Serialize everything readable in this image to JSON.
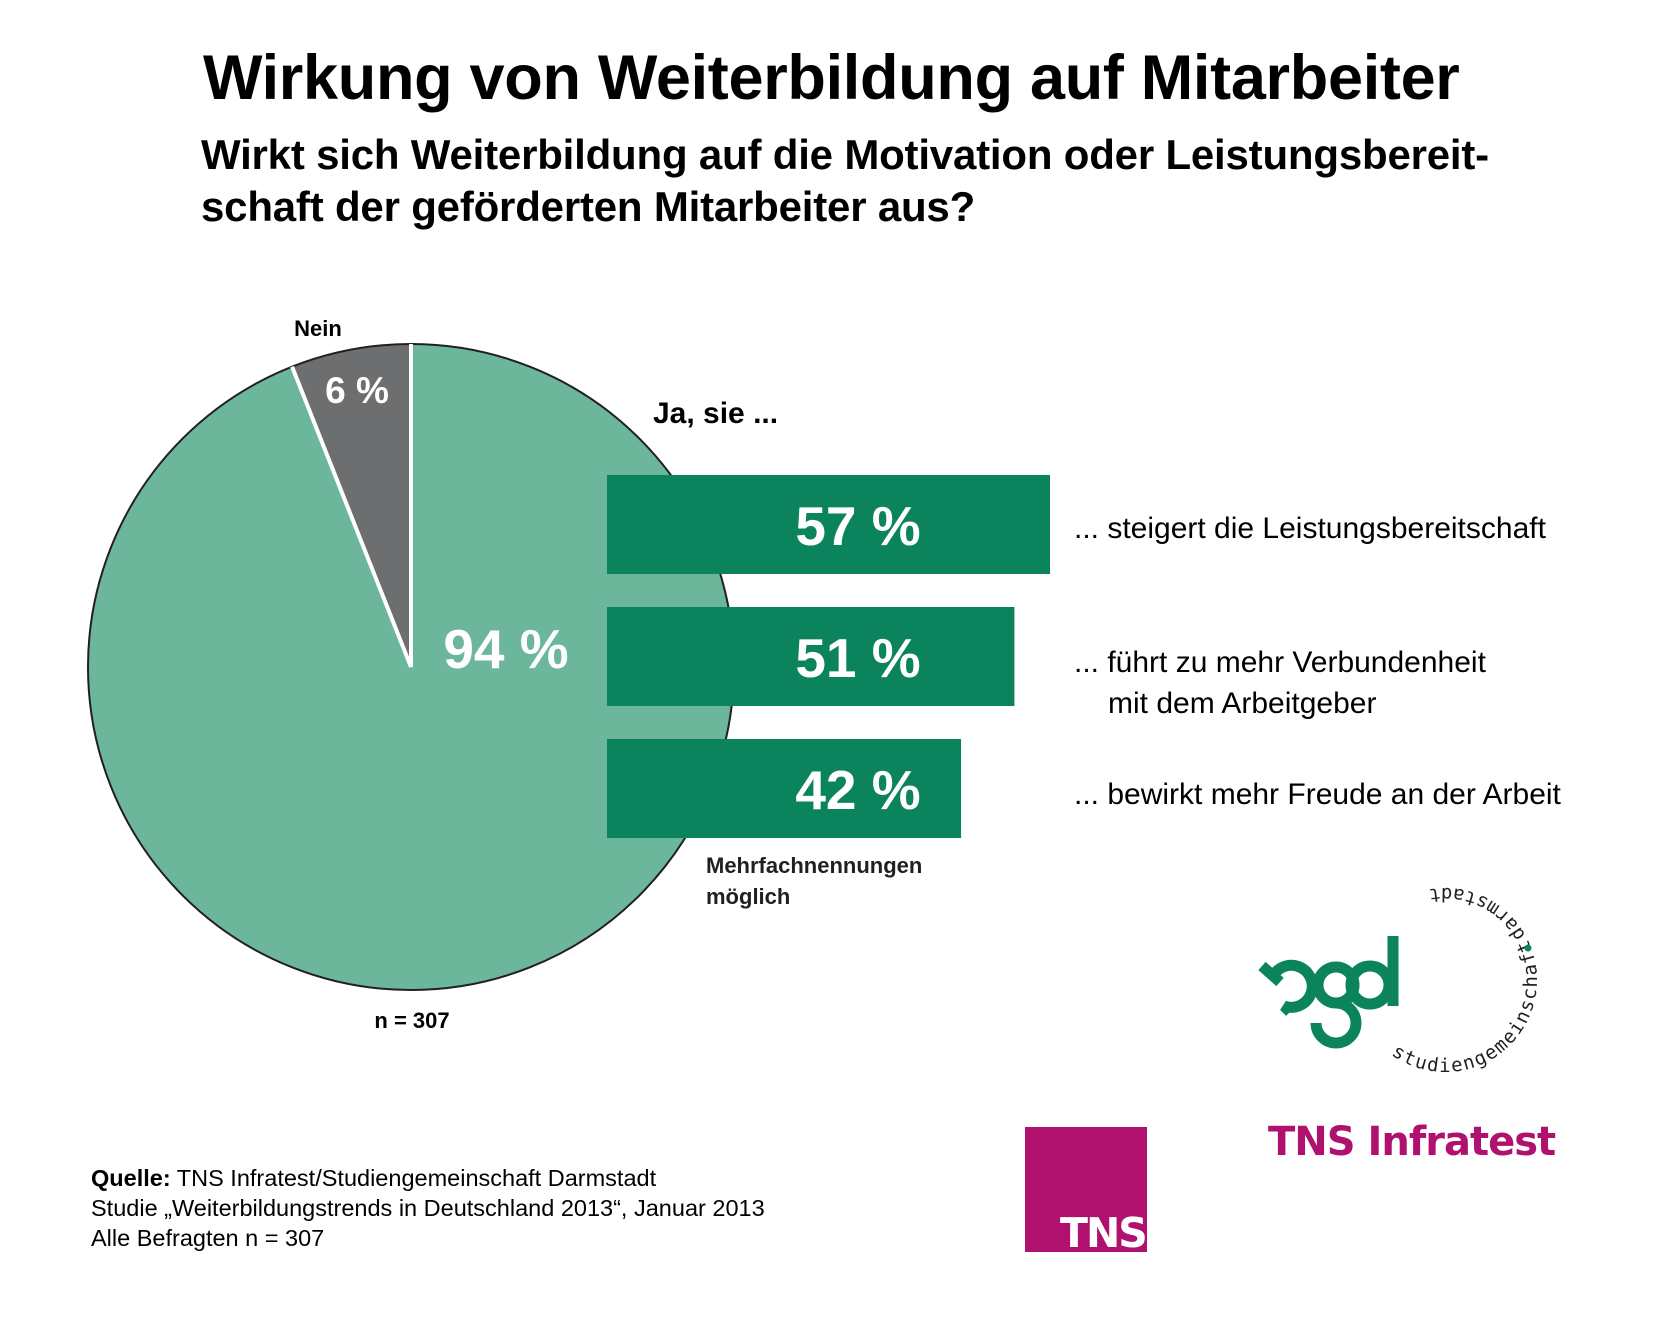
{
  "title": "Wirkung von Weiterbildung auf Mitarbeiter",
  "subtitle": {
    "line1": "Wirkt sich Weiterbildung auf die Motivation oder Leistungsbereit-",
    "line2": "schaft der geförderten Mitarbeiter aus?"
  },
  "colors": {
    "yes_slice": "#6cb69c",
    "no_slice": "#6d6e70",
    "bar": "#0b845d",
    "brand_magenta": "#b0106e",
    "sgd_green": "#0b845d"
  },
  "chart_data": [
    {
      "type": "pie",
      "title": "Wirkt sich Weiterbildung auf die Motivation oder Leistungsbereitschaft der geförderten Mitarbeiter aus?",
      "categories": [
        "Nein",
        "Ja"
      ],
      "values": [
        6,
        94
      ],
      "labels": [
        "6 %",
        "94 %"
      ],
      "outside_labels": {
        "no": "Nein"
      },
      "sample_note": "n = 307",
      "start": "12 o'clock, Nein slice counter-clockwise"
    },
    {
      "type": "bar",
      "orientation": "horizontal",
      "header": "Ja, sie ...",
      "categories": [
        "... steigert die Leistungsbereitschaft",
        "... führt zu mehr Verbundenheit mit dem Arbeitgeber",
        "... bewirkt mehr Freude an der Arbeit"
      ],
      "category_lines": [
        [
          "... steigert die Leistungsbereitschaft"
        ],
        [
          "... führt zu mehr Verbundenheit",
          "mit dem Arbeitgeber"
        ],
        [
          "... bewirkt mehr Freude an der Arbeit"
        ]
      ],
      "values": [
        57,
        51,
        42
      ],
      "labels": [
        "57 %",
        "51 %",
        "42 %"
      ],
      "unit": "%",
      "note": [
        "Mehrfachnennungen",
        "möglich"
      ]
    }
  ],
  "footer": {
    "source_label": "Quelle:",
    "source_text": " TNS Infratest/Studiengemeinschaft Darmstadt",
    "line2": "Studie „Weiterbildungstrends in Deutschland 2013“, Januar 2013",
    "line3": "Alle Befragten n = 307"
  },
  "logos": {
    "sgd": {
      "letters": "sgd",
      "ring_bottom": "studiengemeinschaft",
      "ring_top": "darmstadt"
    },
    "tns_box": "TNS",
    "tns_infratest": "TNS Infratest"
  }
}
